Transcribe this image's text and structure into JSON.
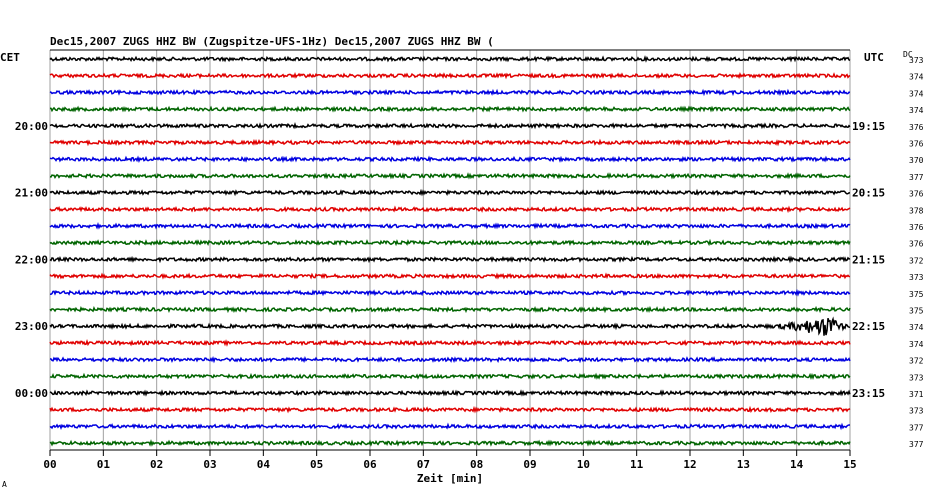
{
  "header": {
    "title": "Dec15,2007   ZUGS HHZ BW (Zugspitze-UFS-1Hz) Dec15,2007   ZUGS HHZ BW (",
    "left_tz": "CET",
    "right_tz": "UTC",
    "dc_header": "DC",
    "corner_mark": "A"
  },
  "chart_data": {
    "type": "line",
    "title": "Dec15,2007   ZUGS HHZ BW (Zugspitze-UFS-1Hz) Dec15,2007   ZUGS HHZ BW (",
    "xlabel": "Zeit [min]",
    "x_ticks": [
      "00",
      "01",
      "02",
      "03",
      "04",
      "05",
      "06",
      "07",
      "08",
      "09",
      "10",
      "11",
      "12",
      "13",
      "14",
      "15"
    ],
    "xlim": [
      0,
      15
    ],
    "grid": true,
    "trace_count": 24,
    "trace_colors": [
      "#000000",
      "#e00000",
      "#0000e0",
      "#006400"
    ],
    "left_time_labels": [
      {
        "trace": 4,
        "text": "20:00"
      },
      {
        "trace": 8,
        "text": "21:00"
      },
      {
        "trace": 12,
        "text": "22:00"
      },
      {
        "trace": 16,
        "text": "23:00"
      },
      {
        "trace": 20,
        "text": "00:00"
      }
    ],
    "right_time_labels": [
      {
        "trace": 4,
        "text": "19:15"
      },
      {
        "trace": 8,
        "text": "20:15"
      },
      {
        "trace": 12,
        "text": "21:15"
      },
      {
        "trace": 16,
        "text": "22:15"
      },
      {
        "trace": 20,
        "text": "23:15"
      }
    ],
    "dc_values": [
      "373",
      "374",
      "374",
      "374",
      "376",
      "376",
      "370",
      "377",
      "376",
      "378",
      "376",
      "376",
      "372",
      "373",
      "375",
      "375",
      "374",
      "374",
      "372",
      "373",
      "371",
      "373",
      "377",
      "377"
    ],
    "events": [
      {
        "trace": 16,
        "start_min": 13.4,
        "peak_min": 14.6,
        "end_min": 15.0,
        "amplitude": 10
      }
    ]
  }
}
